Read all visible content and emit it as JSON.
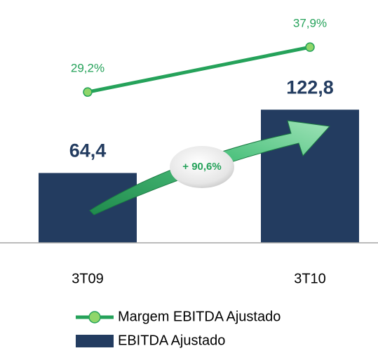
{
  "chart_data": {
    "type": "bar",
    "categories": [
      "3T09",
      "3T10"
    ],
    "series": [
      {
        "name": "Margem EBITDA Ajustado",
        "type": "line",
        "axis": "y2",
        "color": "#25a25a",
        "values": [
          29.2,
          37.9
        ],
        "value_labels": [
          "29,2%",
          "37,9%"
        ]
      },
      {
        "name": "EBITDA Ajustado",
        "type": "bar",
        "color": "#233c60",
        "values": [
          64.4,
          122.8
        ],
        "value_labels": [
          "64,4",
          "122,8"
        ]
      }
    ],
    "annotations": [
      "+ 90,6%"
    ],
    "ylim": [
      0,
      200
    ],
    "y2lim": [
      0,
      42
    ]
  }
}
